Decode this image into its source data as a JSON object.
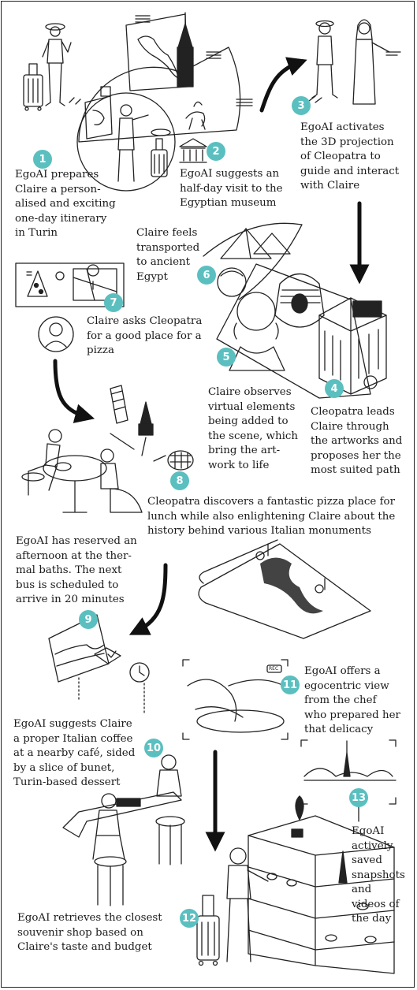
{
  "colors": {
    "accent": "#5bbfc0",
    "ink": "#1a1a1a"
  },
  "steps": [
    {
      "number": "1",
      "lines": [
        "EgoAI prepares",
        "Claire a person-",
        "alised and exciting",
        "one-day itinerary",
        "in Turin"
      ]
    },
    {
      "number": "2",
      "lines": [
        "EgoAI suggests an",
        "half-day visit to the",
        "Egyptian museum"
      ]
    },
    {
      "number": "3",
      "lines": [
        "EgoAI activates",
        "the 3D projection",
        "of Cleopatra to",
        "guide and interact",
        "with Claire"
      ]
    },
    {
      "number": "4",
      "lines": [
        "Cleopatra leads",
        "Claire through",
        "the artworks and",
        "proposes her the",
        "most suited path"
      ]
    },
    {
      "number": "5",
      "lines": [
        "Claire observes",
        "virtual elements",
        "being added to",
        "the scene, which",
        "bring the art-",
        "work to life"
      ]
    },
    {
      "number": "6",
      "lines": [
        "Claire feels",
        "transported",
        "to ancient",
        "Egypt"
      ]
    },
    {
      "number": "7",
      "lines": [
        "Claire asks Cleopatra",
        "for a good place for a",
        "pizza"
      ]
    },
    {
      "number": "8",
      "lines": [
        "Cleopatra discovers a fantastic pizza place for",
        "lunch while also enlightening Claire about the",
        "history behind various Italian monuments"
      ]
    },
    {
      "number": "9",
      "lines": [
        "EgoAI has reserved an",
        "afternoon at the ther-",
        "mal baths. The next",
        "bus is scheduled to",
        "arrive in 20 minutes"
      ]
    },
    {
      "number": "10",
      "lines": [
        "EgoAI suggests Claire",
        "a proper Italian coffee",
        "at a nearby café, sided",
        "by a slice of bunet,",
        "Turin-based dessert"
      ]
    },
    {
      "number": "11",
      "lines": [
        "EgoAI offers a",
        "egocentric view",
        "from the chef",
        "who prepared her",
        "that delicacy"
      ]
    },
    {
      "number": "12",
      "lines": [
        "EgoAI retrieves the closest",
        "souvenir shop based on",
        "Claire's taste and budget"
      ]
    },
    {
      "number": "13",
      "lines": [
        "EgoAI",
        "actively",
        "saved",
        "snapshots",
        "and",
        "videos of",
        "the day"
      ]
    }
  ],
  "rec_label": "REC",
  "icons": [
    "suitcase-icon",
    "museum-icon",
    "pyramid-icon",
    "pharaoh-mask-icon",
    "pizza-icon",
    "map-pin-icon",
    "mole-antonelliana-icon",
    "colosseum-icon",
    "leaning-tower-icon",
    "clock-icon",
    "camera-viewfinder-icon",
    "shelf-icon"
  ]
}
